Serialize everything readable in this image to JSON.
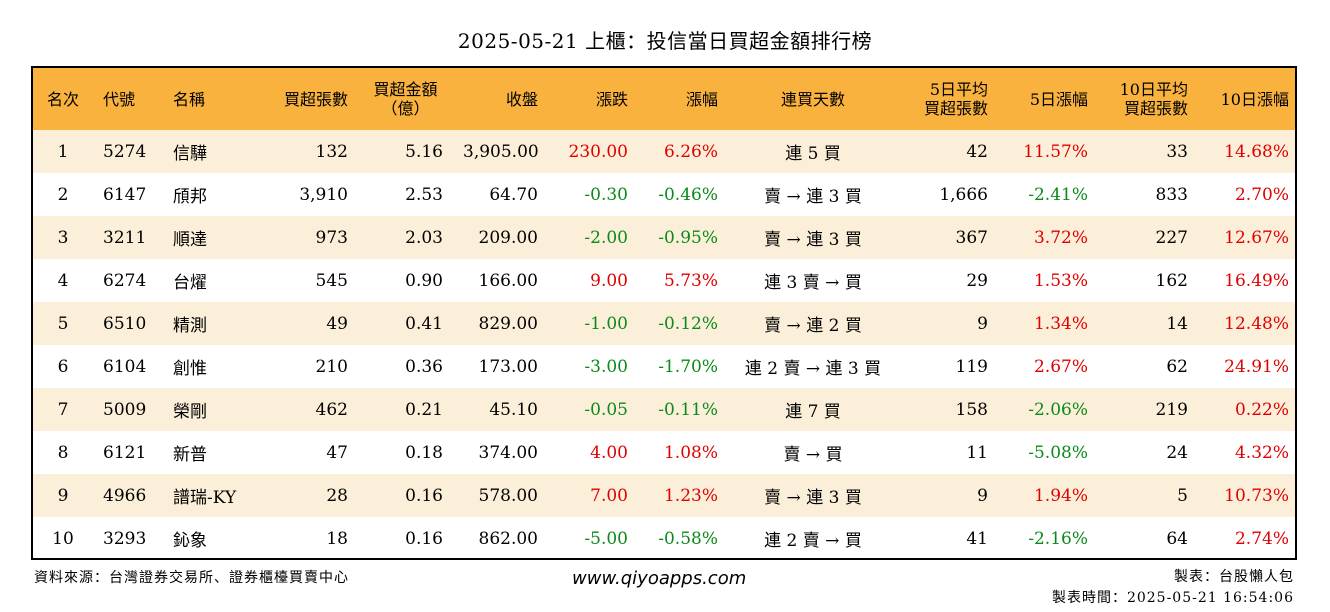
{
  "title": "2025-05-21 上櫃：投信當日買超金額排行榜",
  "colors": {
    "header_bg": "#f9b23e",
    "stripe_bg": "#fcefd9",
    "up": "#e00000",
    "down": "#0a8a1a"
  },
  "headers": {
    "rank": "名次",
    "code": "代號",
    "name": "名稱",
    "buy_lots": "買超張數",
    "buy_amount_l1": "買超金額",
    "buy_amount_l2": "（億）",
    "close": "收盤",
    "change": "漲跌",
    "pct": "漲幅",
    "streak": "連買天數",
    "avg5_l1": "5日平均",
    "avg5_l2": "買超張數",
    "pct5": "5日漲幅",
    "avg10_l1": "10日平均",
    "avg10_l2": "買超張數",
    "pct10": "10日漲幅"
  },
  "rows": [
    {
      "rank": "1",
      "code": "5274",
      "name": "信驊",
      "buy_lots": "132",
      "amount": "5.16",
      "close": "3,905.00",
      "change": "230.00",
      "pct": "6.26%",
      "streak": "連 5 買",
      "avg5": "42",
      "pct5": "11.57%",
      "avg10": "33",
      "pct10": "14.68%"
    },
    {
      "rank": "2",
      "code": "6147",
      "name": "頎邦",
      "buy_lots": "3,910",
      "amount": "2.53",
      "close": "64.70",
      "change": "-0.30",
      "pct": "-0.46%",
      "streak": "賣 → 連 3 買",
      "avg5": "1,666",
      "pct5": "-2.41%",
      "avg10": "833",
      "pct10": "2.70%"
    },
    {
      "rank": "3",
      "code": "3211",
      "name": "順達",
      "buy_lots": "973",
      "amount": "2.03",
      "close": "209.00",
      "change": "-2.00",
      "pct": "-0.95%",
      "streak": "賣 → 連 3 買",
      "avg5": "367",
      "pct5": "3.72%",
      "avg10": "227",
      "pct10": "12.67%"
    },
    {
      "rank": "4",
      "code": "6274",
      "name": "台燿",
      "buy_lots": "545",
      "amount": "0.90",
      "close": "166.00",
      "change": "9.00",
      "pct": "5.73%",
      "streak": "連 3 賣 → 買",
      "avg5": "29",
      "pct5": "1.53%",
      "avg10": "162",
      "pct10": "16.49%"
    },
    {
      "rank": "5",
      "code": "6510",
      "name": "精測",
      "buy_lots": "49",
      "amount": "0.41",
      "close": "829.00",
      "change": "-1.00",
      "pct": "-0.12%",
      "streak": "賣 → 連 2 買",
      "avg5": "9",
      "pct5": "1.34%",
      "avg10": "14",
      "pct10": "12.48%"
    },
    {
      "rank": "6",
      "code": "6104",
      "name": "創惟",
      "buy_lots": "210",
      "amount": "0.36",
      "close": "173.00",
      "change": "-3.00",
      "pct": "-1.70%",
      "streak": "連 2 賣 → 連 3 買",
      "avg5": "119",
      "pct5": "2.67%",
      "avg10": "62",
      "pct10": "24.91%"
    },
    {
      "rank": "7",
      "code": "5009",
      "name": "榮剛",
      "buy_lots": "462",
      "amount": "0.21",
      "close": "45.10",
      "change": "-0.05",
      "pct": "-0.11%",
      "streak": "連 7 買",
      "avg5": "158",
      "pct5": "-2.06%",
      "avg10": "219",
      "pct10": "0.22%"
    },
    {
      "rank": "8",
      "code": "6121",
      "name": "新普",
      "buy_lots": "47",
      "amount": "0.18",
      "close": "374.00",
      "change": "4.00",
      "pct": "1.08%",
      "streak": "賣 → 買",
      "avg5": "11",
      "pct5": "-5.08%",
      "avg10": "24",
      "pct10": "4.32%"
    },
    {
      "rank": "9",
      "code": "4966",
      "name": "譜瑞-KY",
      "buy_lots": "28",
      "amount": "0.16",
      "close": "578.00",
      "change": "7.00",
      "pct": "1.23%",
      "streak": "賣 → 連 3 買",
      "avg5": "9",
      "pct5": "1.94%",
      "avg10": "5",
      "pct10": "10.73%"
    },
    {
      "rank": "10",
      "code": "3293",
      "name": "鈊象",
      "buy_lots": "18",
      "amount": "0.16",
      "close": "862.00",
      "change": "-5.00",
      "pct": "-0.58%",
      "streak": "連 2 賣 → 買",
      "avg5": "41",
      "pct5": "-2.16%",
      "avg10": "64",
      "pct10": "2.74%"
    }
  ],
  "footer": {
    "source": "資料來源：台灣證券交易所、證券櫃檯買賣中心",
    "website": "www.qiyoapps.com",
    "author": "製表：台股懶人包",
    "timestamp": "製表時間：2025-05-21 16:54:06"
  }
}
